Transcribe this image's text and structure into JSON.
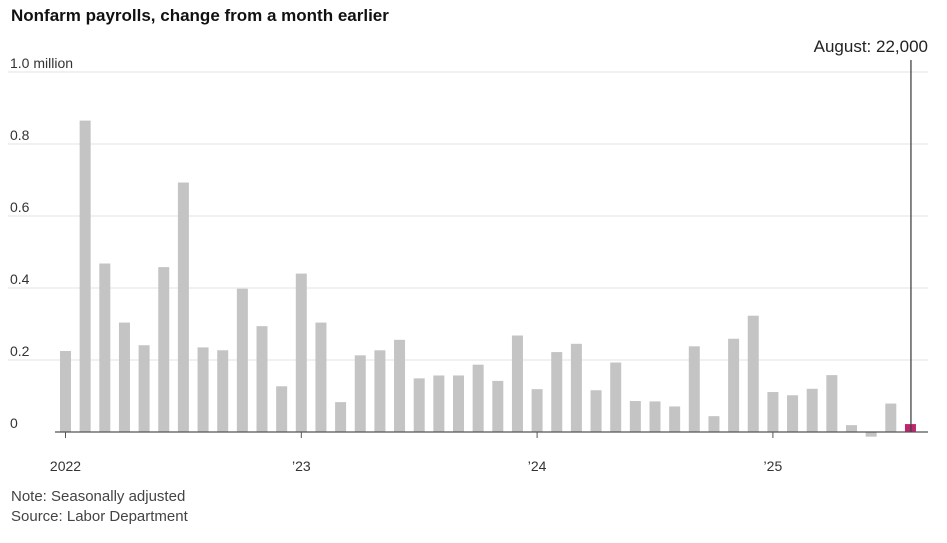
{
  "title": "Nonfarm payrolls, change from a month earlier",
  "note": "Note: Seasonally adjusted",
  "source": "Source: Labor Department",
  "colors": {
    "bar": "#c4c4c4",
    "highlight": "#c0246f",
    "grid": "#e3e3e3",
    "axis": "#555555"
  },
  "chart_data": {
    "type": "bar",
    "x": [
      "2022-01",
      "2022-02",
      "2022-03",
      "2022-04",
      "2022-05",
      "2022-06",
      "2022-07",
      "2022-08",
      "2022-09",
      "2022-10",
      "2022-11",
      "2022-12",
      "2023-01",
      "2023-02",
      "2023-03",
      "2023-04",
      "2023-05",
      "2023-06",
      "2023-07",
      "2023-08",
      "2023-09",
      "2023-10",
      "2023-11",
      "2023-12",
      "2024-01",
      "2024-02",
      "2024-03",
      "2024-04",
      "2024-05",
      "2024-06",
      "2024-07",
      "2024-08",
      "2024-09",
      "2024-10",
      "2024-11",
      "2024-12",
      "2025-01",
      "2025-02",
      "2025-03",
      "2025-04",
      "2025-05",
      "2025-06",
      "2025-07",
      "2025-08"
    ],
    "values": [
      0.225,
      0.865,
      0.468,
      0.304,
      0.241,
      0.458,
      0.693,
      0.235,
      0.227,
      0.398,
      0.294,
      0.127,
      0.44,
      0.304,
      0.083,
      0.213,
      0.227,
      0.256,
      0.149,
      0.157,
      0.157,
      0.187,
      0.142,
      0.268,
      0.119,
      0.222,
      0.245,
      0.116,
      0.193,
      0.086,
      0.085,
      0.071,
      0.238,
      0.044,
      0.259,
      0.323,
      0.111,
      0.102,
      0.12,
      0.158,
      0.019,
      -0.013,
      0.079,
      0.022
    ],
    "highlight_index": 43,
    "ylim": [
      -0.02,
      1.0
    ],
    "y_ticks": [
      {
        "value": 1.0,
        "label": "1.0 million"
      },
      {
        "value": 0.8,
        "label": "0.8"
      },
      {
        "value": 0.6,
        "label": "0.6"
      },
      {
        "value": 0.4,
        "label": "0.4"
      },
      {
        "value": 0.2,
        "label": "0.2"
      },
      {
        "value": 0,
        "label": "0"
      }
    ],
    "x_ticks": [
      {
        "index": 0,
        "label": "2022"
      },
      {
        "index": 12,
        "label": "’23"
      },
      {
        "index": 24,
        "label": "’24"
      },
      {
        "index": 36,
        "label": "’25"
      }
    ],
    "annotation": {
      "index": 43,
      "label": "August: 22,000"
    },
    "grid": true,
    "xlabel": "",
    "ylabel": ""
  }
}
